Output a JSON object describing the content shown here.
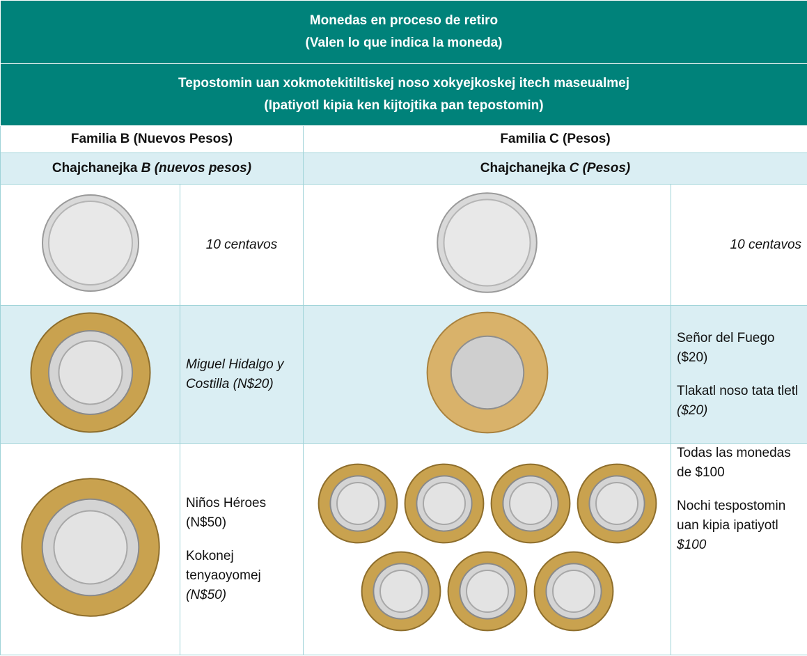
{
  "header": {
    "title_lines": [
      "Monedas en proceso de retiro",
      "(Valen lo que indica la moneda)"
    ],
    "subtitle_lines": [
      "Tepostomin uan xokmotekitiltiskej noso xokyejkoskej itech maseualmej",
      "(Ipatiyotl kipia ken kijtojtika pan tepostomin)"
    ]
  },
  "families": [
    {
      "name": "Familia B (Nuevos Pesos)",
      "translation": {
        "text": "Chajchanejka",
        "emphasis": "B (nuevos pesos)"
      }
    },
    {
      "name": "Familia C (Pesos)",
      "translation": {
        "text": "Chajchanejka",
        "emphasis": "C (Pesos)"
      }
    }
  ],
  "rows": [
    {
      "family_b": [
        [
          {
            "text": "10 centavos",
            "italic": true
          }
        ]
      ],
      "family_c": [
        [
          {
            "text": "10 centavos",
            "italic": true
          }
        ]
      ]
    },
    {
      "family_b": [
        [
          {
            "text": "Miguel Hidalgo y Costilla (N$20)",
            "italic": true
          }
        ]
      ],
      "family_c": [
        [
          {
            "text": "Señor del Fuego ($20)",
            "italic": false
          }
        ],
        [
          {
            "text": "Tlakatl noso tata tletl",
            "italic": false
          },
          {
            "text": "($20)",
            "italic": true
          }
        ]
      ]
    },
    {
      "family_b": [
        [
          {
            "text": "Niños Héroes (N$50)",
            "italic": false
          }
        ],
        [
          {
            "text": "Kokonej tenyaoyomej",
            "italic": false
          },
          {
            "text": "(N$50)",
            "italic": true
          }
        ]
      ],
      "family_c": [
        [
          {
            "text": "Todas las monedas de $100",
            "italic": false
          }
        ],
        [
          {
            "text": "Nochi tespostomin uan kipia ipatiyotl",
            "italic": false
          },
          {
            "text": "$100",
            "italic": true
          }
        ]
      ]
    }
  ]
}
